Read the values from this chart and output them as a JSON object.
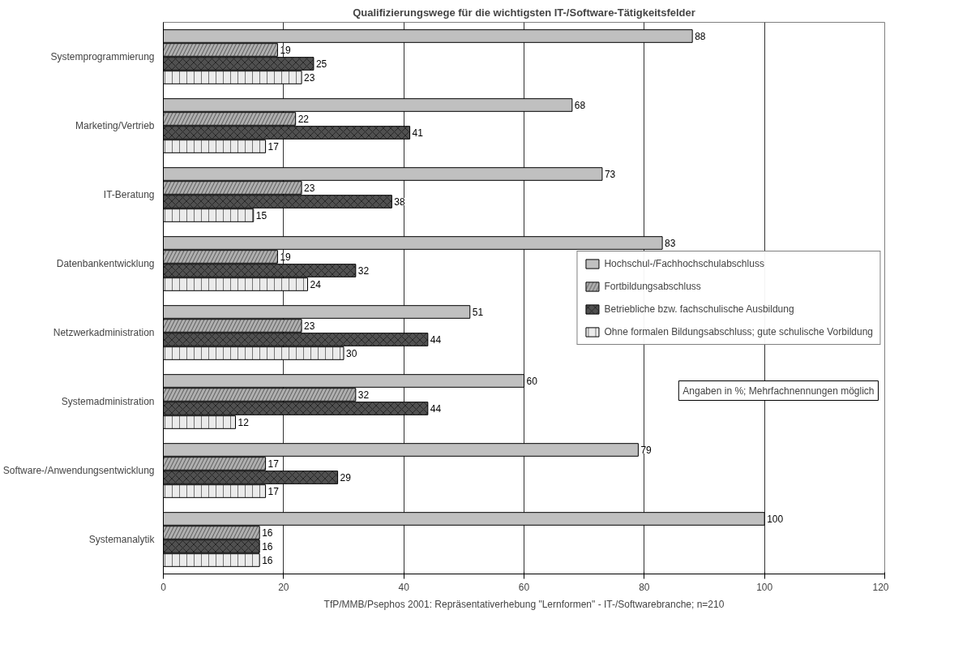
{
  "chart_data": {
    "type": "bar",
    "orientation": "horizontal",
    "title": "Qualifizierungswege für die wichtigsten IT-/Software-Tätigkeitsfelder",
    "categories": [
      "Systemprogrammierung",
      "Marketing/Vertrieb",
      "IT-Beratung",
      "Datenbankentwicklung",
      "Netzwerkadministration",
      "Systemadministration",
      "Software-/Anwendungsentwicklung",
      "Systemanalytik"
    ],
    "series": [
      {
        "name": "Hochschul-/Fachhochschulabschluss",
        "color": "#c0c0c0",
        "values": [
          88,
          68,
          73,
          83,
          51,
          60,
          79,
          100
        ]
      },
      {
        "name": "Fortbildungsabschluss",
        "color": "#b0b0b0",
        "values": [
          19,
          22,
          23,
          19,
          23,
          32,
          17,
          16
        ]
      },
      {
        "name": "Betriebliche bzw. fachschulische Ausbildung",
        "color": "#505050",
        "values": [
          25,
          41,
          38,
          32,
          44,
          44,
          29,
          16
        ]
      },
      {
        "name": "Ohne formalen Bildungsabschluss; gute schulische Vorbildung",
        "color": "#ebebeb",
        "values": [
          23,
          17,
          15,
          24,
          30,
          12,
          17,
          16
        ]
      }
    ],
    "xlim": [
      0,
      120
    ],
    "xticks": [
      0,
      20,
      40,
      60,
      80,
      100,
      120
    ],
    "grid": "x",
    "legend": "right",
    "data_labels": true,
    "annotations": [
      "Angaben in %; Mehrfachnennungen möglich",
      "TfP/MMB/Psephos 2001: Repräsentativerhebung \"Lernformen\" - IT-/Softwarebranche; n=210"
    ]
  }
}
